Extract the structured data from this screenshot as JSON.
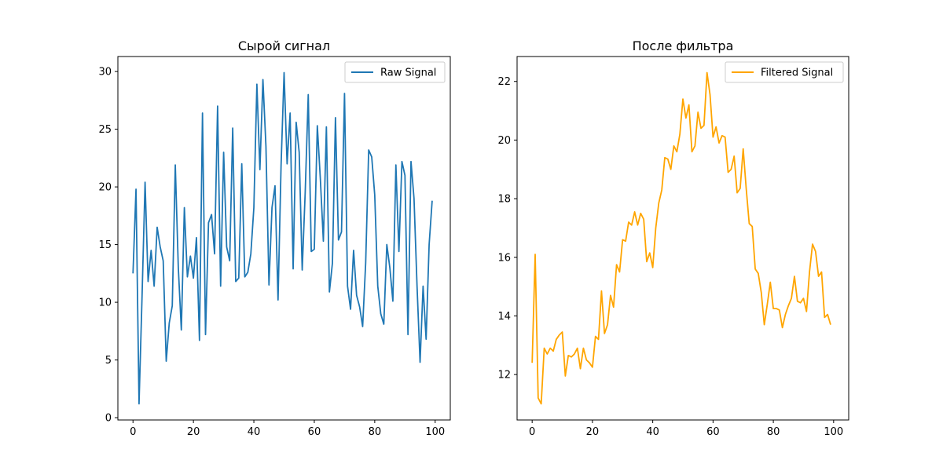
{
  "chart_data": [
    {
      "type": "line",
      "title": "Сырой сигнал",
      "xlabel": "",
      "ylabel": "",
      "xlim": [
        -5,
        105
      ],
      "ylim": [
        -0.2,
        31.3
      ],
      "xticks": [
        0,
        20,
        40,
        60,
        80,
        100
      ],
      "yticks": [
        0,
        5,
        10,
        15,
        20,
        25,
        30
      ],
      "grid": false,
      "legend_position": "top-right",
      "series": [
        {
          "name": "Raw Signal",
          "color": "#1f77b4",
          "x": [
            0,
            1,
            2,
            3,
            4,
            5,
            6,
            7,
            8,
            9,
            10,
            11,
            12,
            13,
            14,
            15,
            16,
            17,
            18,
            19,
            20,
            21,
            22,
            23,
            24,
            25,
            26,
            27,
            28,
            29,
            30,
            31,
            32,
            33,
            34,
            35,
            36,
            37,
            38,
            39,
            40,
            41,
            42,
            43,
            44,
            45,
            46,
            47,
            48,
            49,
            50,
            51,
            52,
            53,
            54,
            55,
            56,
            57,
            58,
            59,
            60,
            61,
            62,
            63,
            64,
            65,
            66,
            67,
            68,
            69,
            70,
            71,
            72,
            73,
            74,
            75,
            76,
            77,
            78,
            79,
            80,
            81,
            82,
            83,
            84,
            85,
            86,
            87,
            88,
            89,
            90,
            91,
            92,
            93,
            94,
            95,
            96,
            97,
            98,
            99
          ],
          "y": [
            12.5,
            19.8,
            1.2,
            10.5,
            20.4,
            11.8,
            14.5,
            11.4,
            16.5,
            14.8,
            13.6,
            4.9,
            8.2,
            9.7,
            21.9,
            13.0,
            7.6,
            18.2,
            12.2,
            14.0,
            12.1,
            15.6,
            6.7,
            26.4,
            7.2,
            16.9,
            17.6,
            14.2,
            27.0,
            11.4,
            23.0,
            14.8,
            13.6,
            25.1,
            11.8,
            12.1,
            22.0,
            12.2,
            12.6,
            14.2,
            18.2,
            28.9,
            21.5,
            29.3,
            23.5,
            11.5,
            18.2,
            20.1,
            10.2,
            21.8,
            29.9,
            22.0,
            26.4,
            12.9,
            25.6,
            23.0,
            12.8,
            19.6,
            28.0,
            14.4,
            14.6,
            25.3,
            20.7,
            15.3,
            25.2,
            10.9,
            13.4,
            26.0,
            15.4,
            16.1,
            28.1,
            11.4,
            9.4,
            14.5,
            10.6,
            9.6,
            7.9,
            13.4,
            23.2,
            22.6,
            19.3,
            11.4,
            9.0,
            8.1,
            15.0,
            13.0,
            10.1,
            21.9,
            14.4,
            22.2,
            21.0,
            7.2,
            22.2,
            19.0,
            11.4,
            4.8,
            11.4,
            6.8,
            15.0,
            18.8
          ]
        }
      ]
    },
    {
      "type": "line",
      "title": "После фильтра",
      "xlabel": "",
      "ylabel": "",
      "xlim": [
        -5,
        105
      ],
      "ylim": [
        10.45,
        22.85
      ],
      "xticks": [
        0,
        20,
        40,
        60,
        80,
        100
      ],
      "yticks": [
        12,
        14,
        16,
        18,
        20,
        22
      ],
      "grid": false,
      "legend_position": "top-right",
      "series": [
        {
          "name": "Filtered Signal",
          "color": "#ffa500",
          "x": [
            0,
            1,
            2,
            3,
            4,
            5,
            6,
            7,
            8,
            9,
            10,
            11,
            12,
            13,
            14,
            15,
            16,
            17,
            18,
            19,
            20,
            21,
            22,
            23,
            24,
            25,
            26,
            27,
            28,
            29,
            30,
            31,
            32,
            33,
            34,
            35,
            36,
            37,
            38,
            39,
            40,
            41,
            42,
            43,
            44,
            45,
            46,
            47,
            48,
            49,
            50,
            51,
            52,
            53,
            54,
            55,
            56,
            57,
            58,
            59,
            60,
            61,
            62,
            63,
            64,
            65,
            66,
            67,
            68,
            69,
            70,
            71,
            72,
            73,
            74,
            75,
            76,
            77,
            78,
            79,
            80,
            81,
            82,
            83,
            84,
            85,
            86,
            87,
            88,
            89,
            90,
            91,
            92,
            93,
            94,
            95,
            96,
            97,
            98,
            99
          ],
          "y": [
            12.4,
            16.1,
            11.2,
            11.0,
            12.9,
            12.7,
            12.9,
            12.8,
            13.2,
            13.35,
            13.45,
            11.95,
            12.65,
            12.6,
            12.7,
            12.9,
            12.2,
            12.9,
            12.5,
            12.4,
            12.25,
            13.3,
            13.2,
            14.85,
            13.4,
            13.7,
            14.7,
            14.3,
            15.75,
            15.5,
            16.6,
            16.55,
            17.2,
            17.1,
            17.55,
            17.1,
            17.5,
            17.3,
            15.85,
            16.15,
            15.65,
            17.0,
            17.85,
            18.3,
            19.4,
            19.35,
            19.0,
            19.8,
            19.6,
            20.2,
            21.4,
            20.75,
            21.2,
            19.6,
            19.8,
            20.95,
            20.4,
            20.5,
            22.3,
            21.55,
            20.1,
            20.45,
            19.9,
            20.15,
            20.1,
            18.9,
            19.0,
            19.45,
            18.2,
            18.35,
            19.7,
            18.35,
            17.15,
            17.05,
            15.6,
            15.45,
            14.8,
            13.7,
            14.4,
            15.15,
            14.25,
            14.25,
            14.2,
            13.6,
            14.05,
            14.35,
            14.6,
            15.35,
            14.5,
            14.45,
            14.6,
            14.15,
            15.5,
            16.45,
            16.2,
            15.35,
            15.5,
            13.95,
            14.05,
            13.7
          ]
        }
      ]
    }
  ]
}
